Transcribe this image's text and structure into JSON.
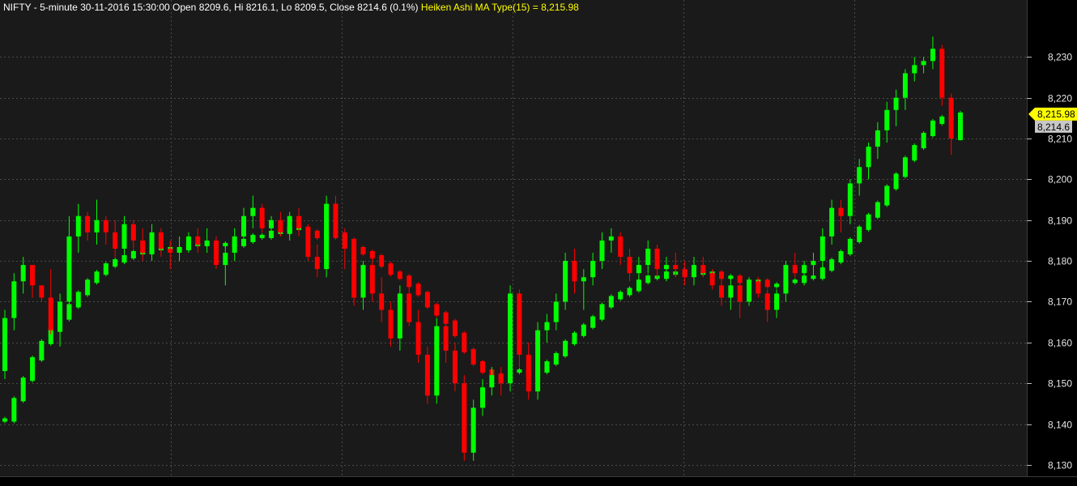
{
  "header": {
    "main_text": "NIFTY - 5-minute 30-11-2016 15:30:00 Open 8209.6, Hi 8216.1, Lo 8209.5, Close 8214.6 (0.1%)",
    "indicator_text": "Heiken Ashi MA Type(15) = 8,215.98"
  },
  "colors": {
    "background": "#1a1a1a",
    "axis_background": "#000000",
    "grid": "#4a4a4a",
    "bull": "#00ff00",
    "bear": "#ff0000",
    "header_text": "#ffffff",
    "indicator_text": "#ffff00",
    "indicator_badge": "#ffff00",
    "close_badge": "#c8c8c8"
  },
  "chart_data": {
    "type": "candlestick",
    "symbol": "NIFTY",
    "timeframe": "5-minute",
    "last_bar": {
      "datetime": "30-11-2016 15:30:00",
      "open": 8209.6,
      "high": 8216.1,
      "low": 8209.5,
      "close": 8214.6,
      "change_pct": 0.1
    },
    "indicator": {
      "name": "Heiken Ashi MA Type(15)",
      "last_value": 8215.98
    },
    "y_axis": {
      "ylim": [
        8128,
        8238
      ],
      "ticks": [
        8130,
        8140,
        8150,
        8160,
        8170,
        8180,
        8190,
        8200,
        8210,
        8220,
        8230
      ],
      "tick_labels": [
        "8,130",
        "8,140",
        "8,150",
        "8,160",
        "8,170",
        "8,180",
        "8,190",
        "8,200",
        "8,210",
        "8,220",
        "8,230"
      ]
    },
    "badges": {
      "indicator_value": "8,215.98",
      "close_value": "8,214.6"
    },
    "grid": true,
    "candles_ohlc": [
      [
        8153,
        8168,
        8151,
        8166
      ],
      [
        8166,
        8177,
        8163,
        8175
      ],
      [
        8175,
        8181,
        8172,
        8179
      ],
      [
        8179,
        8178,
        8171,
        8174
      ],
      [
        8174,
        8174,
        8170,
        8171
      ],
      [
        8171,
        8178,
        8162,
        8163
      ],
      [
        8163,
        8172,
        8159,
        8170
      ],
      [
        8170,
        8191,
        8168,
        8186
      ],
      [
        8186,
        8194,
        8182,
        8191
      ],
      [
        8191,
        8192,
        8185,
        8187
      ],
      [
        8187,
        8195,
        8184,
        8190
      ],
      [
        8190,
        8191,
        8184,
        8187
      ],
      [
        8187,
        8190,
        8181,
        8183
      ],
      [
        8183,
        8191,
        8181,
        8189
      ],
      [
        8189,
        8190,
        8183,
        8185
      ],
      [
        8185,
        8188,
        8180,
        8182
      ],
      [
        8182,
        8189,
        8180,
        8187
      ],
      [
        8187,
        8188,
        8181,
        8183
      ],
      [
        8183,
        8185,
        8178,
        8182
      ],
      [
        8182,
        8186,
        8180,
        8183
      ],
      [
        8183,
        8187,
        8182,
        8186
      ],
      [
        8186,
        8188,
        8182,
        8184
      ],
      [
        8184,
        8188,
        8182,
        8185
      ],
      [
        8185,
        8186,
        8178,
        8179
      ],
      [
        8179,
        8184,
        8174,
        8182
      ],
      [
        8182,
        8188,
        8180,
        8186
      ],
      [
        8186,
        8193,
        8184,
        8191
      ],
      [
        8191,
        8196,
        8188,
        8193
      ],
      [
        8193,
        8194,
        8187,
        8188
      ],
      [
        8188,
        8191,
        8186,
        8190
      ],
      [
        8190,
        8192,
        8186,
        8187
      ],
      [
        8187,
        8192,
        8185,
        8191
      ],
      [
        8191,
        8193,
        8186,
        8188
      ],
      [
        8188,
        8189,
        8180,
        8181
      ],
      [
        8181,
        8184,
        8176,
        8178
      ],
      [
        8178,
        8196,
        8176,
        8194
      ],
      [
        8194,
        8196,
        8186,
        8187
      ],
      [
        8187,
        8188,
        8178,
        8183
      ],
      [
        8183,
        8184,
        8169,
        8171
      ],
      [
        8171,
        8180,
        8168,
        8179
      ],
      [
        8179,
        8182,
        8170,
        8172
      ],
      [
        8172,
        8176,
        8165,
        8168
      ],
      [
        8168,
        8170,
        8159,
        8161
      ],
      [
        8161,
        8174,
        8158,
        8172
      ],
      [
        8172,
        8174,
        8164,
        8165
      ],
      [
        8165,
        8168,
        8155,
        8157
      ],
      [
        8157,
        8159,
        8145,
        8147
      ],
      [
        8147,
        8166,
        8145,
        8164
      ],
      [
        8164,
        8167,
        8155,
        8158
      ],
      [
        8158,
        8160,
        8148,
        8150
      ],
      [
        8150,
        8152,
        8131,
        8133
      ],
      [
        8133,
        8146,
        8131,
        8144
      ],
      [
        8144,
        8151,
        8142,
        8149
      ],
      [
        8149,
        8154,
        8147,
        8152
      ],
      [
        8152,
        8154,
        8147,
        8150
      ],
      [
        8150,
        8174,
        8148,
        8172
      ],
      [
        8172,
        8173,
        8154,
        8157
      ],
      [
        8157,
        8160,
        8146,
        8148
      ],
      [
        8148,
        8165,
        8146,
        8163
      ],
      [
        8163,
        8167,
        8160,
        8165
      ],
      [
        8165,
        8172,
        8163,
        8170
      ],
      [
        8170,
        8182,
        8168,
        8180
      ],
      [
        8180,
        8183,
        8172,
        8175
      ],
      [
        8175,
        8178,
        8168,
        8176
      ],
      [
        8176,
        8182,
        8174,
        8180
      ],
      [
        8180,
        8187,
        8178,
        8185
      ],
      [
        8185,
        8188,
        8182,
        8186
      ],
      [
        8186,
        8187,
        8179,
        8181
      ],
      [
        8181,
        8183,
        8175,
        8177
      ],
      [
        8177,
        8181,
        8175,
        8179
      ],
      [
        8179,
        8185,
        8177,
        8183
      ],
      [
        8183,
        8184,
        8176,
        8178
      ],
      [
        8178,
        8181,
        8175,
        8179
      ],
      [
        8179,
        8182,
        8176,
        8178
      ],
      [
        8178,
        8180,
        8174,
        8176
      ],
      [
        8176,
        8181,
        8174,
        8179
      ],
      [
        8179,
        8181,
        8176,
        8177
      ],
      [
        8177,
        8178,
        8173,
        8174
      ],
      [
        8174,
        8177,
        8169,
        8171
      ],
      [
        8171,
        8176,
        8168,
        8174
      ],
      [
        8174,
        8175,
        8166,
        8170
      ],
      [
        8170,
        8176,
        8169,
        8175
      ],
      [
        8175,
        8176,
        8171,
        8172
      ],
      [
        8172,
        8173,
        8165,
        8168
      ],
      [
        8168,
        8173,
        8166,
        8172
      ],
      [
        8172,
        8180,
        8170,
        8179
      ],
      [
        8179,
        8182,
        8176,
        8177
      ],
      [
        8177,
        8180,
        8174,
        8179
      ],
      [
        8179,
        8182,
        8176,
        8180
      ],
      [
        8180,
        8188,
        8178,
        8186
      ],
      [
        8186,
        8195,
        8184,
        8193
      ],
      [
        8193,
        8195,
        8187,
        8191
      ],
      [
        8191,
        8200,
        8189,
        8199
      ],
      [
        8199,
        8205,
        8196,
        8203
      ],
      [
        8203,
        8209,
        8200,
        8208
      ],
      [
        8208,
        8214,
        8205,
        8212
      ],
      [
        8212,
        8219,
        8209,
        8217
      ],
      [
        8217,
        8222,
        8213,
        8220
      ],
      [
        8220,
        8227,
        8217,
        8226
      ],
      [
        8226,
        8230,
        8224,
        8228
      ],
      [
        8228,
        8230,
        8226,
        8229
      ],
      [
        8229,
        8235,
        8227,
        8232
      ],
      [
        8232,
        8233,
        8218,
        8220
      ],
      [
        8220,
        8221,
        8206,
        8210
      ],
      [
        8209.6,
        8216.1,
        8209.5,
        8214.6
      ]
    ],
    "heiken_ashi_ma": [
      8141,
      8146,
      8151,
      8156,
      8160,
      8163,
      8166,
      8169,
      8172,
      8175,
      8177,
      8179,
      8180,
      8181,
      8182,
      8182,
      8183,
      8183,
      8183,
      8183,
      8184,
      8184,
      8184,
      8184,
      8184,
      8184,
      8185,
      8186,
      8186,
      8187,
      8187,
      8188,
      8188,
      8187,
      8186,
      8187,
      8186,
      8185,
      8183,
      8182,
      8181,
      8179,
      8177,
      8176,
      8174,
      8172,
      8169,
      8167,
      8165,
      8162,
      8158,
      8155,
      8153,
      8152,
      8151,
      8153,
      8153,
      8152,
      8153,
      8155,
      8157,
      8160,
      8162,
      8164,
      8166,
      8169,
      8171,
      8172,
      8173,
      8175,
      8176,
      8176,
      8177,
      8177,
      8177,
      8177,
      8177,
      8177,
      8176,
      8176,
      8175,
      8175,
      8175,
      8174,
      8174,
      8175,
      8175,
      8176,
      8176,
      8178,
      8180,
      8182,
      8185,
      8188,
      8191,
      8194,
      8198,
      8201,
      8205,
      8208,
      8211,
      8214,
      8215,
      8215,
      8215.98
    ]
  }
}
